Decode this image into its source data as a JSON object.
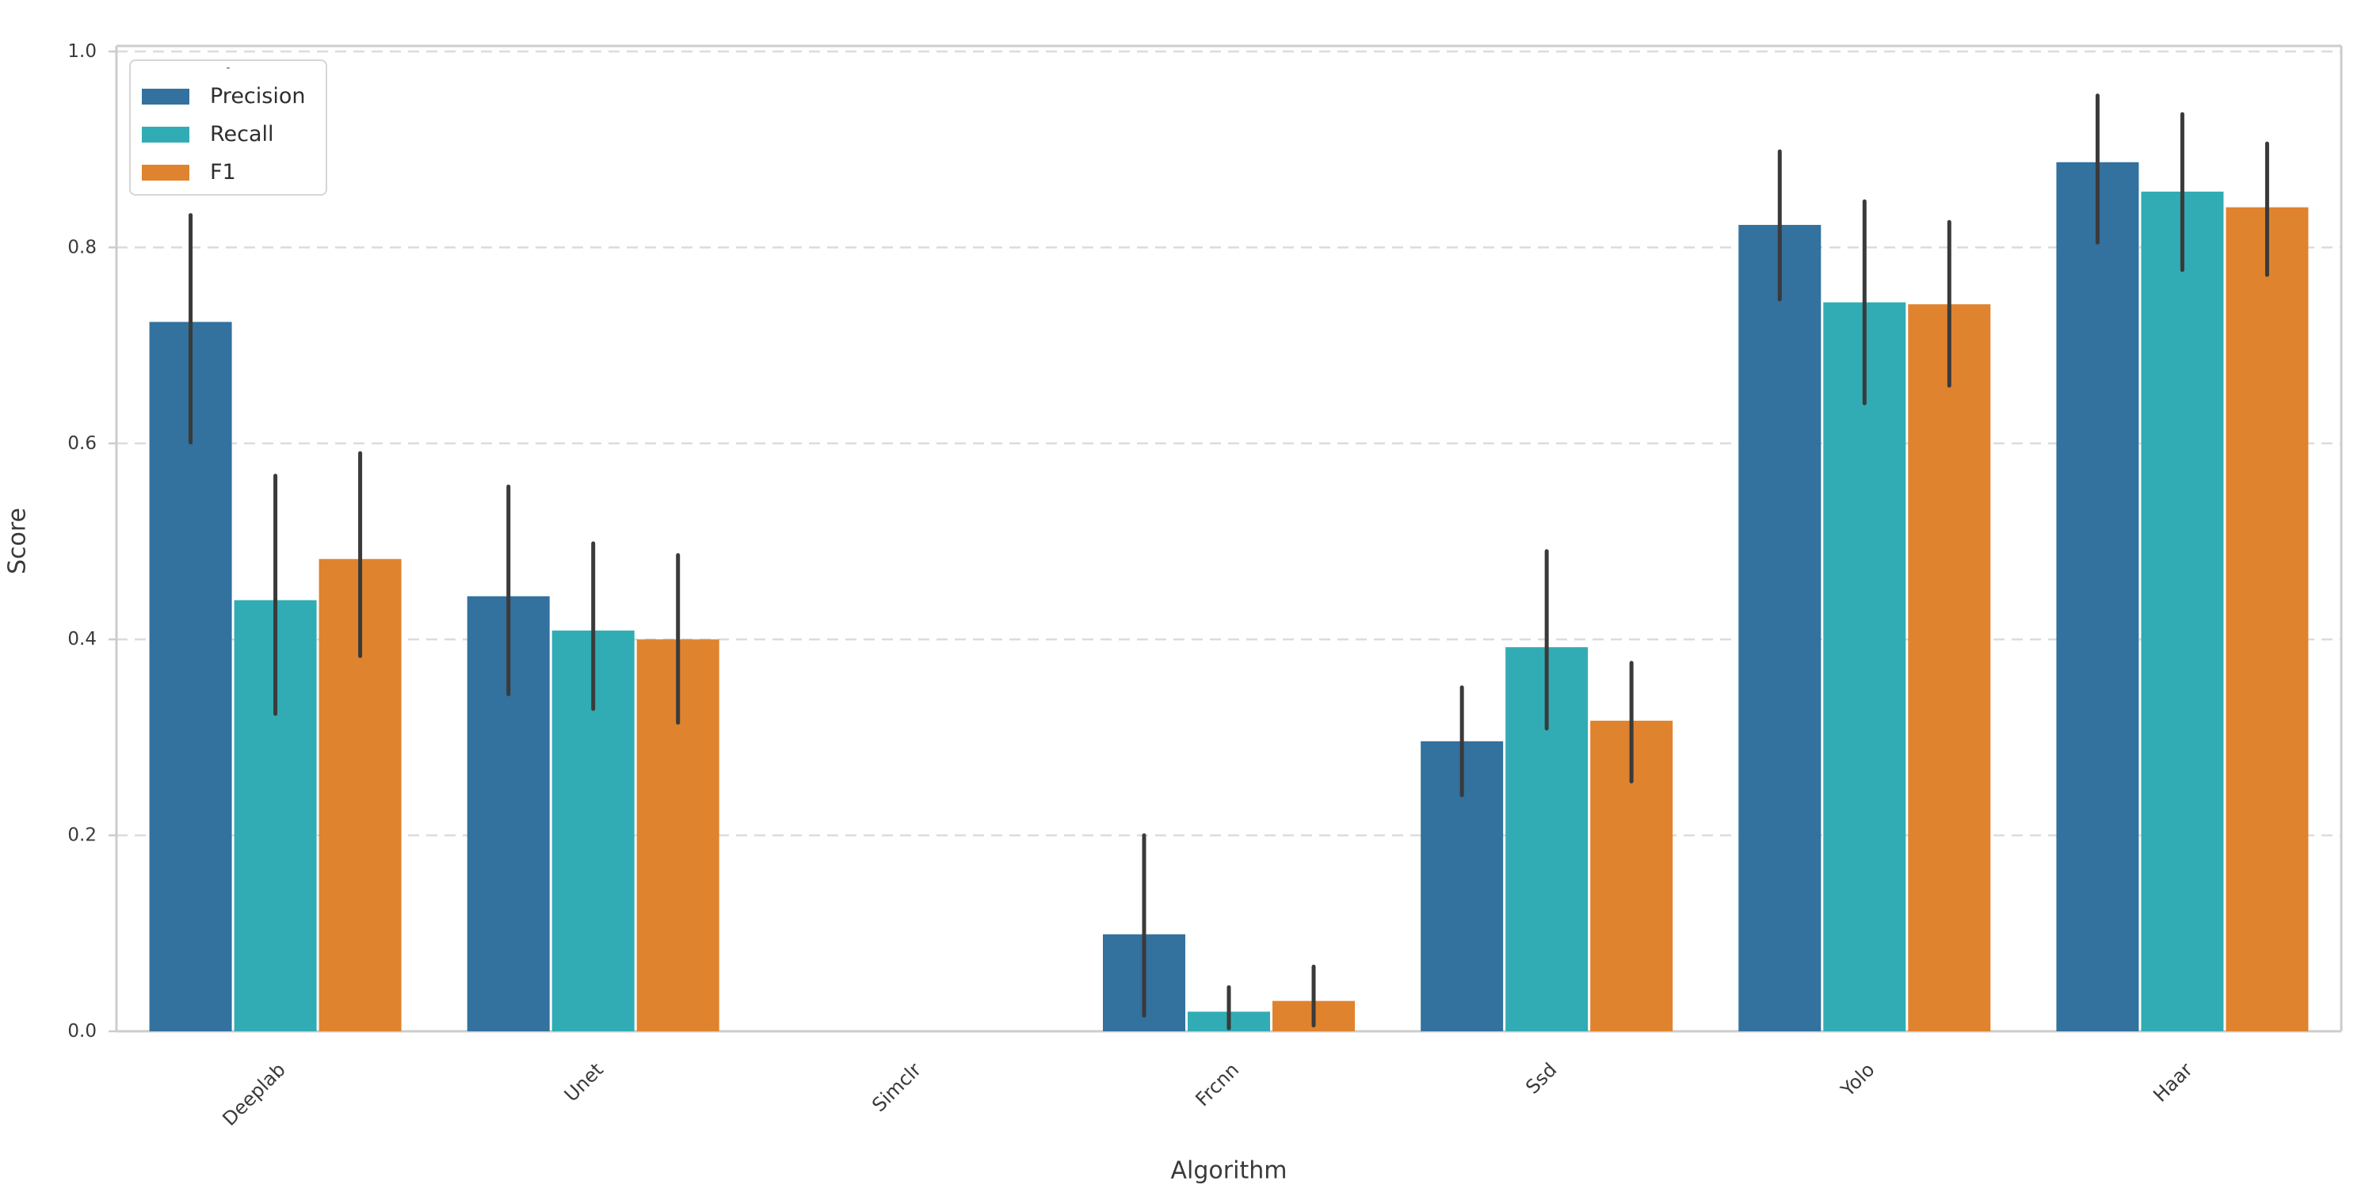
{
  "figure": {
    "background": "#ffffff",
    "ylabel": "Score",
    "xlabel": "Algorithm",
    "legend": {
      "title": "-",
      "entries": [
        {
          "label": "Precision",
          "color": "#33719e"
        },
        {
          "label": "Recall",
          "color": "#31acb4"
        },
        {
          "label": "F1",
          "color": "#e0832e"
        }
      ]
    }
  },
  "chart_data": {
    "type": "bar",
    "title": "",
    "xlabel": "Algorithm",
    "ylabel": "Score",
    "categories": [
      "Deeplab",
      "Unet",
      "Simclr",
      "Frcnn",
      "Ssd",
      "Yolo",
      "Haar"
    ],
    "yticks": [
      "0.0",
      "0.2",
      "0.4",
      "0.6",
      "0.8",
      "1.0"
    ],
    "ytick_values": [
      0.0,
      0.2,
      0.4,
      0.6,
      0.8,
      1.0
    ],
    "ylim": [
      0.0,
      1.02
    ],
    "grid": "horizontal-dashed",
    "legend_position": "upper-left",
    "error_bar_color": "#3a3a3a",
    "grid_color": "#dcdcdc",
    "spine_color": "#cccccc",
    "tick_text_color": "#3a3a3a",
    "series": [
      {
        "name": "Precision",
        "color": "#33719e",
        "values": [
          0.724,
          0.444,
          0.0,
          0.099,
          0.296,
          0.823,
          0.887
        ],
        "err_low": [
          0.601,
          0.344,
          null,
          0.016,
          0.241,
          0.747,
          0.805
        ],
        "err_high": [
          0.833,
          0.556,
          null,
          0.2,
          0.351,
          0.898,
          0.955
        ]
      },
      {
        "name": "Recall",
        "color": "#31acb4",
        "values": [
          0.44,
          0.409,
          0.0,
          0.02,
          0.392,
          0.744,
          0.857
        ],
        "err_low": [
          0.324,
          0.329,
          null,
          0.003,
          0.309,
          0.641,
          0.777
        ],
        "err_high": [
          0.567,
          0.498,
          null,
          0.045,
          0.49,
          0.847,
          0.936
        ]
      },
      {
        "name": "F1",
        "color": "#e0832e",
        "values": [
          0.482,
          0.4,
          0.0,
          0.031,
          0.317,
          0.742,
          0.841
        ],
        "err_low": [
          0.383,
          0.315,
          null,
          0.006,
          0.255,
          0.659,
          0.772
        ],
        "err_high": [
          0.59,
          0.486,
          null,
          0.066,
          0.376,
          0.826,
          0.906
        ]
      }
    ]
  }
}
